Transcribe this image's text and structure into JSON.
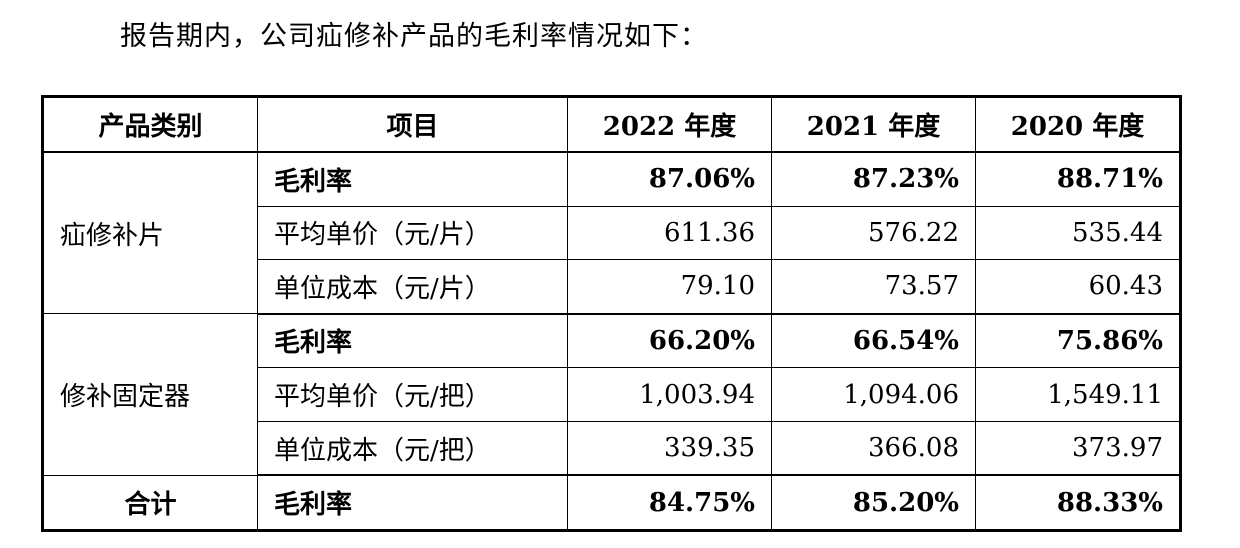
{
  "intro": "报告期内，公司疝修补产品的毛利率情况如下：",
  "table": {
    "headers": [
      "产品类别",
      "项目",
      "2022 年度",
      "2021 年度",
      "2020 年度"
    ],
    "groups": [
      {
        "category": "疝修补片",
        "rows": [
          {
            "item": "毛利率",
            "values": [
              "87.06%",
              "87.23%",
              "88.71%"
            ]
          },
          {
            "item": "平均单价（元/片）",
            "values": [
              "611.36",
              "576.22",
              "535.44"
            ]
          },
          {
            "item": "单位成本（元/片）",
            "values": [
              "79.10",
              "73.57",
              "60.43"
            ]
          }
        ]
      },
      {
        "category": "修补固定器",
        "rows": [
          {
            "item": "毛利率",
            "values": [
              "66.20%",
              "66.54%",
              "75.86%"
            ]
          },
          {
            "item": "平均单价（元/把）",
            "values": [
              "1,003.94",
              "1,094.06",
              "1,549.11"
            ]
          },
          {
            "item": "单位成本（元/把）",
            "values": [
              "339.35",
              "366.08",
              "373.97"
            ]
          }
        ]
      },
      {
        "category": "合计",
        "rows": [
          {
            "item": "毛利率",
            "values": [
              "84.75%",
              "85.20%",
              "88.33%"
            ]
          }
        ]
      }
    ]
  }
}
